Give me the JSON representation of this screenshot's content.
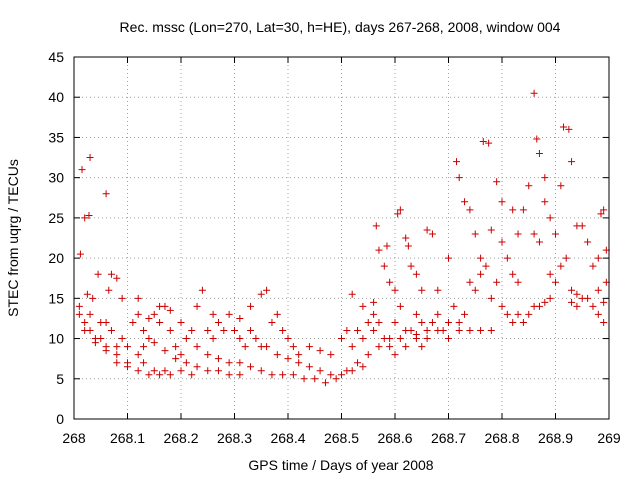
{
  "chart_data": {
    "type": "scatter",
    "title": "Rec. mssc (Lon=270, Lat=30, h=HE), days 267-268, 2008, window 004",
    "xlabel": "GPS time / Days of year 2008",
    "ylabel": "STEC from uqrg / TECUs",
    "xlim": [
      268,
      269
    ],
    "ylim": [
      0,
      45
    ],
    "xticks": [
      "268",
      "268.1",
      "268.2",
      "268.3",
      "268.4",
      "268.5",
      "268.6",
      "268.7",
      "268.8",
      "268.9",
      "269"
    ],
    "yticks": [
      "0",
      "5",
      "10",
      "15",
      "20",
      "25",
      "30",
      "35",
      "40",
      "45"
    ],
    "grid": true,
    "marker": "plus",
    "color": "#cc0000",
    "points": [
      [
        268.015,
        31
      ],
      [
        268.02,
        25
      ],
      [
        268.03,
        32.5
      ],
      [
        268.012,
        20.5
      ],
      [
        268.025,
        15.5
      ],
      [
        268.028,
        25.3
      ],
      [
        268.035,
        15
      ],
      [
        268.045,
        18
      ],
      [
        268.06,
        28
      ],
      [
        268.07,
        18
      ],
      [
        268.08,
        17.5
      ],
      [
        268.065,
        16
      ],
      [
        268.01,
        14
      ],
      [
        268.02,
        12
      ],
      [
        268.02,
        11
      ],
      [
        268.03,
        13
      ],
      [
        268.04,
        10
      ],
      [
        268.05,
        12
      ],
      [
        268.06,
        9
      ],
      [
        268.07,
        11
      ],
      [
        268.08,
        8
      ],
      [
        268.09,
        10
      ],
      [
        268.1,
        7
      ],
      [
        268.01,
        13
      ],
      [
        268.03,
        11
      ],
      [
        268.05,
        10
      ],
      [
        268.06,
        12
      ],
      [
        268.08,
        9
      ],
      [
        268.09,
        15
      ],
      [
        268.1,
        9
      ],
      [
        268.12,
        8
      ],
      [
        268.13,
        7
      ],
      [
        268.15,
        6
      ],
      [
        268.17,
        6
      ],
      [
        268.04,
        9.5
      ],
      [
        268.06,
        8.5
      ],
      [
        268.08,
        7
      ],
      [
        268.1,
        6.5
      ],
      [
        268.12,
        6
      ],
      [
        268.14,
        5.5
      ],
      [
        268.16,
        5.5
      ],
      [
        268.18,
        5.5
      ],
      [
        268.2,
        6
      ],
      [
        268.22,
        5.5
      ],
      [
        268.11,
        12
      ],
      [
        268.12,
        13
      ],
      [
        268.13,
        11
      ],
      [
        268.14,
        10
      ],
      [
        268.15,
        13
      ],
      [
        268.16,
        12
      ],
      [
        268.17,
        14
      ],
      [
        268.18,
        11
      ],
      [
        268.19,
        9
      ],
      [
        268.2,
        8
      ],
      [
        268.12,
        15
      ],
      [
        268.14,
        12.5
      ],
      [
        268.16,
        14
      ],
      [
        268.18,
        13.5
      ],
      [
        268.2,
        12
      ],
      [
        268.22,
        11
      ],
      [
        268.23,
        14
      ],
      [
        268.24,
        16
      ],
      [
        268.25,
        11
      ],
      [
        268.26,
        10
      ],
      [
        268.13,
        9
      ],
      [
        268.15,
        9.5
      ],
      [
        268.17,
        8.5
      ],
      [
        268.19,
        7.5
      ],
      [
        268.21,
        7
      ],
      [
        268.23,
        6.5
      ],
      [
        268.25,
        6
      ],
      [
        268.27,
        6
      ],
      [
        268.29,
        5.5
      ],
      [
        268.31,
        5.5
      ],
      [
        268.21,
        10
      ],
      [
        268.23,
        9
      ],
      [
        268.25,
        8
      ],
      [
        268.27,
        7.5
      ],
      [
        268.29,
        7
      ],
      [
        268.31,
        7
      ],
      [
        268.33,
        6.5
      ],
      [
        268.35,
        6
      ],
      [
        268.37,
        5.5
      ],
      [
        268.39,
        5.5
      ],
      [
        268.26,
        13
      ],
      [
        268.27,
        12
      ],
      [
        268.28,
        11
      ],
      [
        268.29,
        13
      ],
      [
        268.3,
        11
      ],
      [
        268.31,
        10
      ],
      [
        268.32,
        9
      ],
      [
        268.33,
        11
      ],
      [
        268.34,
        10
      ],
      [
        268.35,
        9
      ],
      [
        268.31,
        12.5
      ],
      [
        268.33,
        14
      ],
      [
        268.35,
        15.5
      ],
      [
        268.36,
        16
      ],
      [
        268.37,
        12
      ],
      [
        268.38,
        13
      ],
      [
        268.39,
        11
      ],
      [
        268.4,
        10
      ],
      [
        268.41,
        9
      ],
      [
        268.42,
        8
      ],
      [
        268.36,
        9
      ],
      [
        268.38,
        8
      ],
      [
        268.4,
        7.5
      ],
      [
        268.42,
        7
      ],
      [
        268.44,
        6.5
      ],
      [
        268.46,
        6
      ],
      [
        268.48,
        5.5
      ],
      [
        268.5,
        5.5
      ],
      [
        268.52,
        6
      ],
      [
        268.54,
        6.5
      ],
      [
        268.41,
        5.5
      ],
      [
        268.43,
        5
      ],
      [
        268.45,
        5
      ],
      [
        268.47,
        4.5
      ],
      [
        268.49,
        5
      ],
      [
        268.51,
        6
      ],
      [
        268.53,
        7
      ],
      [
        268.55,
        8
      ],
      [
        268.57,
        9
      ],
      [
        268.59,
        10
      ],
      [
        268.44,
        9
      ],
      [
        268.46,
        8.5
      ],
      [
        268.48,
        8
      ],
      [
        268.5,
        10
      ],
      [
        268.51,
        11
      ],
      [
        268.52,
        9
      ],
      [
        268.53,
        11
      ],
      [
        268.54,
        10
      ],
      [
        268.55,
        12
      ],
      [
        268.56,
        13
      ],
      [
        268.52,
        15.5
      ],
      [
        268.54,
        14
      ],
      [
        268.56,
        14.5
      ],
      [
        268.565,
        24
      ],
      [
        268.57,
        21
      ],
      [
        268.58,
        19
      ],
      [
        268.585,
        21.5
      ],
      [
        268.59,
        17
      ],
      [
        268.6,
        16
      ],
      [
        268.61,
        14
      ],
      [
        268.56,
        11
      ],
      [
        268.57,
        12
      ],
      [
        268.58,
        10
      ],
      [
        268.59,
        9
      ],
      [
        268.6,
        8
      ],
      [
        268.61,
        10
      ],
      [
        268.62,
        9
      ],
      [
        268.63,
        11
      ],
      [
        268.64,
        10
      ],
      [
        268.65,
        9
      ],
      [
        268.605,
        25.5
      ],
      [
        268.61,
        26
      ],
      [
        268.62,
        22.5
      ],
      [
        268.625,
        21.5
      ],
      [
        268.63,
        19
      ],
      [
        268.64,
        18
      ],
      [
        268.65,
        16
      ],
      [
        268.66,
        23.5
      ],
      [
        268.67,
        23
      ],
      [
        268.68,
        16
      ],
      [
        268.64,
        13
      ],
      [
        268.65,
        12
      ],
      [
        268.66,
        11
      ],
      [
        268.67,
        12
      ],
      [
        268.68,
        13
      ],
      [
        268.69,
        11
      ],
      [
        268.7,
        12
      ],
      [
        268.71,
        14
      ],
      [
        268.72,
        12
      ],
      [
        268.73,
        13
      ],
      [
        268.6,
        12
      ],
      [
        268.62,
        11
      ],
      [
        268.64,
        10.5
      ],
      [
        268.66,
        10
      ],
      [
        268.68,
        11
      ],
      [
        268.7,
        10
      ],
      [
        268.72,
        11
      ],
      [
        268.74,
        11
      ],
      [
        268.76,
        11
      ],
      [
        268.78,
        11
      ],
      [
        268.7,
        20
      ],
      [
        268.715,
        32
      ],
      [
        268.72,
        30
      ],
      [
        268.73,
        27
      ],
      [
        268.74,
        26
      ],
      [
        268.75,
        23
      ],
      [
        268.76,
        20
      ],
      [
        268.765,
        34.5
      ],
      [
        268.775,
        34.3
      ],
      [
        268.78,
        23.5
      ],
      [
        268.74,
        17
      ],
      [
        268.75,
        16
      ],
      [
        268.76,
        18
      ],
      [
        268.77,
        19
      ],
      [
        268.78,
        15
      ],
      [
        268.79,
        17
      ],
      [
        268.8,
        22
      ],
      [
        268.81,
        20
      ],
      [
        268.82,
        18
      ],
      [
        268.83,
        17
      ],
      [
        268.79,
        29.5
      ],
      [
        268.8,
        27
      ],
      [
        268.82,
        26
      ],
      [
        268.83,
        23
      ],
      [
        268.84,
        26
      ],
      [
        268.85,
        29
      ],
      [
        268.86,
        40.5
      ],
      [
        268.865,
        34.8
      ],
      [
        268.87,
        33
      ],
      [
        268.88,
        30
      ],
      [
        268.8,
        14
      ],
      [
        268.81,
        13
      ],
      [
        268.82,
        12
      ],
      [
        268.83,
        13
      ],
      [
        268.84,
        12
      ],
      [
        268.85,
        13
      ],
      [
        268.86,
        14
      ],
      [
        268.87,
        14
      ],
      [
        268.88,
        14.5
      ],
      [
        268.89,
        15
      ],
      [
        268.86,
        23
      ],
      [
        268.87,
        22
      ],
      [
        268.88,
        27
      ],
      [
        268.89,
        25
      ],
      [
        268.9,
        23
      ],
      [
        268.91,
        29
      ],
      [
        268.915,
        36.3
      ],
      [
        268.925,
        36
      ],
      [
        268.93,
        32
      ],
      [
        268.94,
        24
      ],
      [
        268.89,
        18
      ],
      [
        268.9,
        17
      ],
      [
        268.91,
        19
      ],
      [
        268.92,
        20
      ],
      [
        268.93,
        16
      ],
      [
        268.94,
        15.5
      ],
      [
        268.95,
        24
      ],
      [
        268.96,
        22
      ],
      [
        268.97,
        19
      ],
      [
        268.98,
        20
      ],
      [
        268.93,
        14.5
      ],
      [
        268.94,
        14
      ],
      [
        268.95,
        15
      ],
      [
        268.96,
        15
      ],
      [
        268.97,
        14
      ],
      [
        268.98,
        13
      ],
      [
        268.985,
        25.5
      ],
      [
        268.99,
        26
      ],
      [
        268.995,
        21
      ],
      [
        268.99,
        12
      ],
      [
        268.98,
        16
      ],
      [
        268.99,
        14.5
      ],
      [
        268.995,
        17
      ]
    ]
  }
}
